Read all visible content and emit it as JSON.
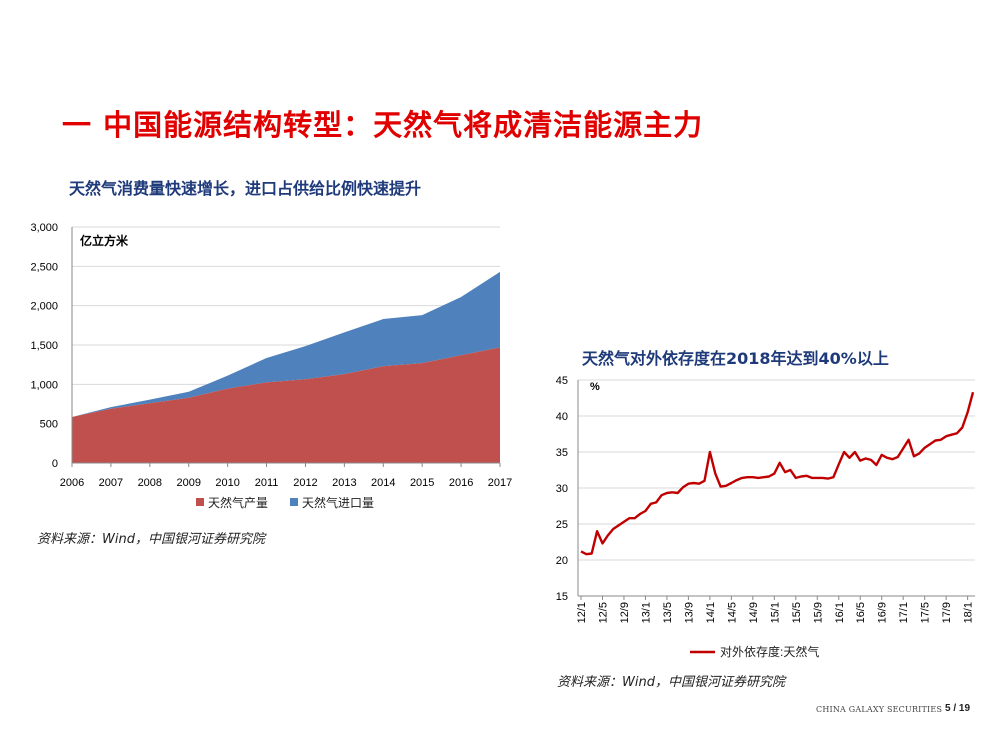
{
  "page": {
    "title": "一 中国能源结构转型：天然气将成清洁能源主力",
    "footer_brand": "CHINA GALAXY SECURITIES",
    "page_number": "5 / 19"
  },
  "colors": {
    "title": "#e00000",
    "subtitle": "#1f3a7a",
    "production": "#c0504d",
    "imports": "#4f81bd",
    "dependency_line": "#c00000"
  },
  "chart_data": [
    {
      "type": "area",
      "stacked": true,
      "title": "天然气消费量快速增长，进口占供给比例快速提升",
      "unit_label": "亿立方米",
      "source": "资料来源：Wind，中国银河证券研究院",
      "x": [
        "2006",
        "2007",
        "2008",
        "2009",
        "2010",
        "2011",
        "2012",
        "2013",
        "2014",
        "2015",
        "2016",
        "2017"
      ],
      "ylim": [
        0,
        3000
      ],
      "yticks": [
        "0",
        "500",
        "1,000",
        "1,500",
        "2,000",
        "2,500",
        "3,000"
      ],
      "grid": true,
      "legend_position": "bottom",
      "series": [
        {
          "name": "天然气产量",
          "values": [
            585,
            690,
            760,
            830,
            945,
            1025,
            1065,
            1130,
            1230,
            1270,
            1370,
            1470
          ]
        },
        {
          "name": "天然气进口量",
          "values": [
            0,
            20,
            45,
            75,
            165,
            310,
            420,
            530,
            600,
            610,
            740,
            960
          ]
        }
      ]
    },
    {
      "type": "line",
      "title": "天然气对外依存度在2018年达到40%以上",
      "unit_label": "%",
      "source": "资料来源：Wind，中国银河证券研究院",
      "ylim": [
        15,
        45
      ],
      "yticks": [
        "15",
        "20",
        "25",
        "30",
        "35",
        "40",
        "45"
      ],
      "x_tick_labels": [
        "12/1",
        "12/5",
        "12/9",
        "13/1",
        "13/5",
        "13/9",
        "14/1",
        "14/5",
        "14/9",
        "15/1",
        "15/5",
        "15/9",
        "16/1",
        "16/5",
        "16/9",
        "17/1",
        "17/5",
        "17/9",
        "18/1"
      ],
      "grid": true,
      "legend_position": "bottom",
      "series": [
        {
          "name": "对外依存度:天然气",
          "values": [
            21.2,
            20.8,
            20.9,
            24.0,
            22.3,
            23.4,
            24.3,
            24.8,
            25.3,
            25.8,
            25.8,
            26.4,
            26.8,
            27.8,
            28.0,
            29.0,
            29.3,
            29.4,
            29.3,
            30.1,
            30.6,
            30.7,
            30.6,
            31.0,
            35.0,
            32.0,
            30.2,
            30.3,
            30.7,
            31.1,
            31.4,
            31.5,
            31.5,
            31.4,
            31.5,
            31.6,
            32.0,
            33.5,
            32.2,
            32.5,
            31.4,
            31.6,
            31.7,
            31.4,
            31.4,
            31.4,
            31.3,
            31.5,
            33.3,
            35.0,
            34.2,
            35.0,
            33.8,
            34.1,
            33.9,
            33.2,
            34.6,
            34.2,
            34.0,
            34.3,
            35.5,
            36.7,
            34.4,
            34.8,
            35.6,
            36.1,
            36.6,
            36.7,
            37.2,
            37.4,
            37.6,
            38.4,
            40.5,
            43.3
          ]
        }
      ]
    }
  ]
}
